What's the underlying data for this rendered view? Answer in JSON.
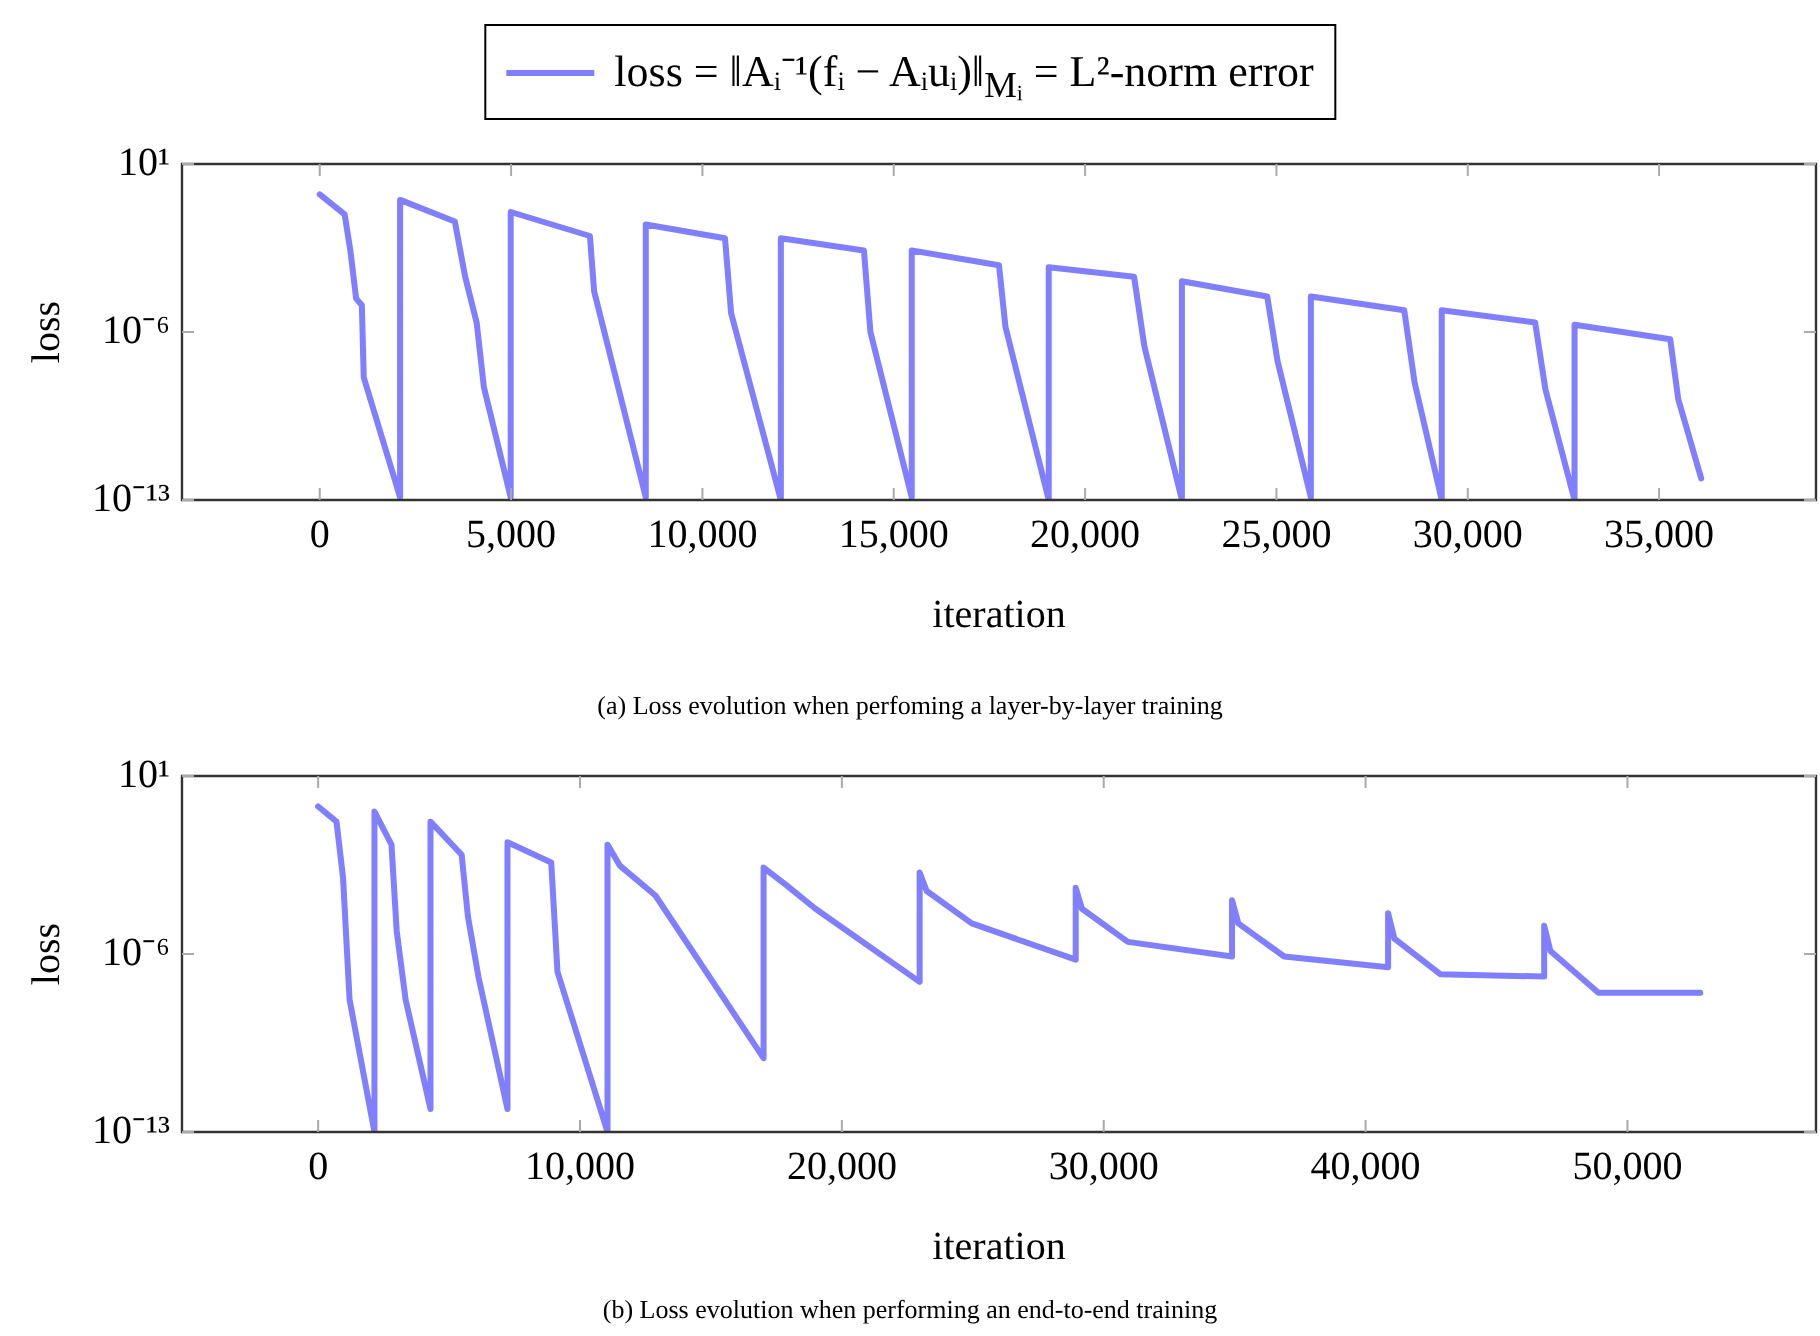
{
  "chart_data": [
    {
      "type": "line",
      "xlabel": "iteration",
      "ylabel": "loss",
      "log": "y",
      "legend": "top",
      "grid": false,
      "marker": "none",
      "xlim": [
        -3600,
        39100
      ],
      "xticks": [
        0,
        {
          "value": 5000,
          "label": "5,000"
        },
        {
          "value": 10000,
          "label": "10,000"
        },
        {
          "value": 15000,
          "label": "15,000"
        },
        {
          "value": 20000,
          "label": "20,000"
        },
        {
          "value": 25000,
          "label": "25,000"
        },
        {
          "value": 30000,
          "label": "30,000"
        },
        {
          "value": 35000,
          "label": "35,000"
        }
      ],
      "ylim": [
        1e-13,
        10
      ],
      "yticks": [
        {
          "value": 10,
          "label": "10¹"
        },
        {
          "value": 1e-06,
          "label": "10⁻⁶"
        },
        {
          "value": 1e-13,
          "label": "10⁻¹³"
        }
      ],
      "annotations": [
        "(a) Loss evolution when perfoming a layer-by-layer training"
      ],
      "series": [
        {
          "name": "loss = ‖Aᵢ⁻¹(fᵢ − Aᵢuᵢ)‖$_{Mᵢ}$ = L²-norm error",
          "color": "#7f7fff",
          "x": [
            0,
            650,
            800,
            950,
            1100,
            1150,
            2100,
            2100,
            3530,
            3800,
            4100,
            4290,
            4990,
            4990,
            7060,
            7170,
            8520,
            8520,
            10590,
            10750,
            12050,
            12050,
            14220,
            14390,
            15470,
            15470,
            17750,
            17920,
            19050,
            19050,
            21280,
            21550,
            22530,
            22530,
            24760,
            25030,
            25900,
            25900,
            28340,
            28610,
            29320,
            29320,
            31760,
            32030,
            32790,
            32790,
            35290,
            35500,
            36100
          ],
          "values": [
            0.54,
            0.08,
            0.0025,
            2.5e-05,
            1.3e-05,
            1.3e-08,
            1.3e-13,
            0.32,
            0.04,
            0.0002,
            2.5e-06,
            5e-09,
            1.3e-13,
            0.1,
            0.01,
            5e-05,
            1.3e-13,
            0.03,
            0.008,
            6e-06,
            1e-13,
            0.008,
            0.0025,
            1e-06,
            1.3e-13,
            0.0025,
            0.0006,
            1.6e-06,
            1e-13,
            0.0005,
            0.0002,
            2.5e-07,
            1e-13,
            0.00013,
            3e-05,
            6e-08,
            1.3e-13,
            3e-05,
            8e-06,
            8e-09,
            1e-13,
            8e-06,
            2.5e-06,
            4e-09,
            1e-13,
            2e-06,
            5e-07,
            1.6e-09,
            8e-13
          ]
        }
      ]
    },
    {
      "type": "line",
      "xlabel": "iteration",
      "ylabel": "loss",
      "log": "y",
      "grid": false,
      "marker": "none",
      "xlim": [
        -5200,
        57200
      ],
      "xticks": [
        0,
        {
          "value": 10000,
          "label": "10,000"
        },
        {
          "value": 20000,
          "label": "20,000"
        },
        {
          "value": 30000,
          "label": "30,000"
        },
        {
          "value": 40000,
          "label": "40,000"
        },
        {
          "value": 50000,
          "label": "50,000"
        }
      ],
      "ylim": [
        1e-13,
        10
      ],
      "yticks": [
        {
          "value": 10,
          "label": "10¹"
        },
        {
          "value": 1e-06,
          "label": "10⁻⁶"
        },
        {
          "value": 1e-13,
          "label": "10⁻¹³"
        }
      ],
      "annotations": [
        "(b) Loss evolution when performing an end-to-end training"
      ],
      "series": [
        {
          "color": "#7f7fff",
          "x": [
            0,
            700,
            950,
            1200,
            2150,
            2150,
            2800,
            3000,
            3340,
            4290,
            4290,
            5480,
            5720,
            6120,
            7230,
            7230,
            8900,
            9140,
            11050,
            11050,
            11520,
            12880,
            17010,
            17010,
            17890,
            18990,
            22970,
            22970,
            23240,
            24960,
            28930,
            28930,
            29170,
            30920,
            34900,
            34900,
            35140,
            36890,
            40860,
            40860,
            41100,
            42850,
            46820,
            46820,
            47060,
            48890,
            52780
          ],
          "values": [
            0.63,
            0.16,
            0.001,
            1.6e-08,
            1e-13,
            0.4,
            0.02,
            8e-06,
            1.6e-08,
            8e-13,
            0.16,
            0.008,
            3e-05,
            1.3e-07,
            8e-13,
            0.025,
            0.004,
            2e-07,
            1e-13,
            0.02,
            0.003,
            0.0002,
            8e-11,
            0.0025,
            0.0005,
            6e-05,
            8e-08,
            0.0016,
            0.0003,
            1.6e-05,
            6e-07,
            0.0004,
            6e-05,
            3e-06,
            8e-07,
            0.00013,
            1.6e-05,
            8e-07,
            3e-07,
            4e-05,
            4e-06,
            1.6e-07,
            1.3e-07,
            1.3e-05,
            1.3e-06,
            3e-08,
            3e-08
          ]
        }
      ]
    }
  ]
}
